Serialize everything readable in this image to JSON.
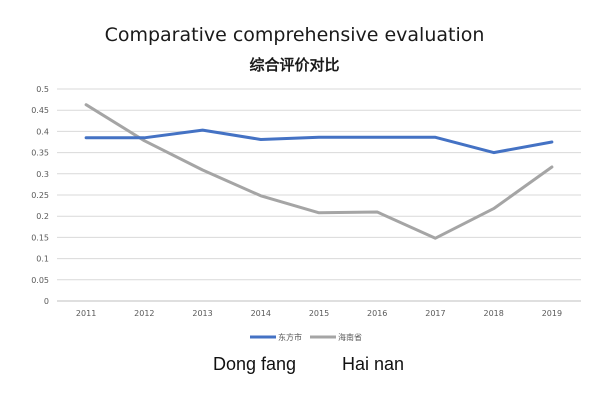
{
  "chart_data": {
    "type": "line",
    "title": "Comparative comprehensive evaluation",
    "subtitle": "综合评价对比",
    "x": [
      "2011",
      "2012",
      "2013",
      "2014",
      "2015",
      "2016",
      "2017",
      "2018",
      "2019"
    ],
    "ylim": [
      0,
      0.5
    ],
    "yticks": [
      "0",
      "0.05",
      "0.1",
      "0.15",
      "0.2",
      "0.25",
      "0.3",
      "0.35",
      "0.4",
      "0.45",
      "0.5"
    ],
    "grid": true,
    "legend_position": "bottom",
    "series": [
      {
        "name": "东方市",
        "color": "#4472c4",
        "values": [
          0.385,
          0.385,
          0.403,
          0.381,
          0.386,
          0.386,
          0.386,
          0.35,
          0.375
        ]
      },
      {
        "name": "海南省",
        "color": "#a5a5a5",
        "values": [
          0.463,
          0.378,
          0.309,
          0.248,
          0.208,
          0.21,
          0.148,
          0.218,
          0.316
        ]
      }
    ]
  },
  "captions": {
    "left": "Dong fang",
    "right": "Hai nan"
  }
}
